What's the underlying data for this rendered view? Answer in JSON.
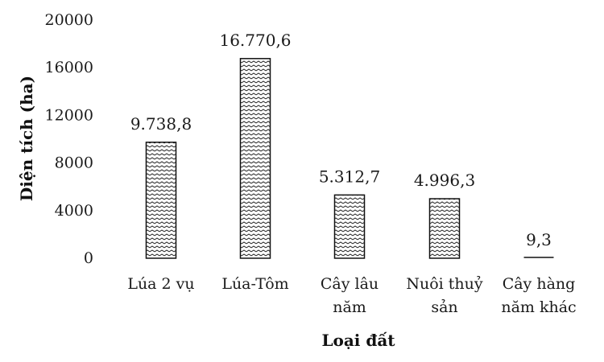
{
  "chart_data": {
    "type": "bar",
    "categories": [
      [
        "Lúa 2 vụ"
      ],
      [
        "Lúa-Tôm"
      ],
      [
        "Cây lâu",
        "năm"
      ],
      [
        "Nuôi thuỷ",
        "sản"
      ],
      [
        "Cây hàng",
        "năm khác"
      ]
    ],
    "values": [
      9738.8,
      16770.6,
      5312.7,
      4996.3,
      9.3
    ],
    "data_labels": [
      "9.738,8",
      "16.770,6",
      "5.312,7",
      "4.996,3",
      "9,3"
    ],
    "xlabel": "Loại đất",
    "ylabel": "Diện tích (ha)",
    "ylim": [
      0,
      20000
    ],
    "yticks": [
      0,
      4000,
      8000,
      12000,
      16000,
      20000
    ],
    "grid": false,
    "legend": "none",
    "colors": {
      "bar_pattern": "#111111",
      "bar_background": "#ffffff",
      "text": "#1a1a1a"
    }
  }
}
